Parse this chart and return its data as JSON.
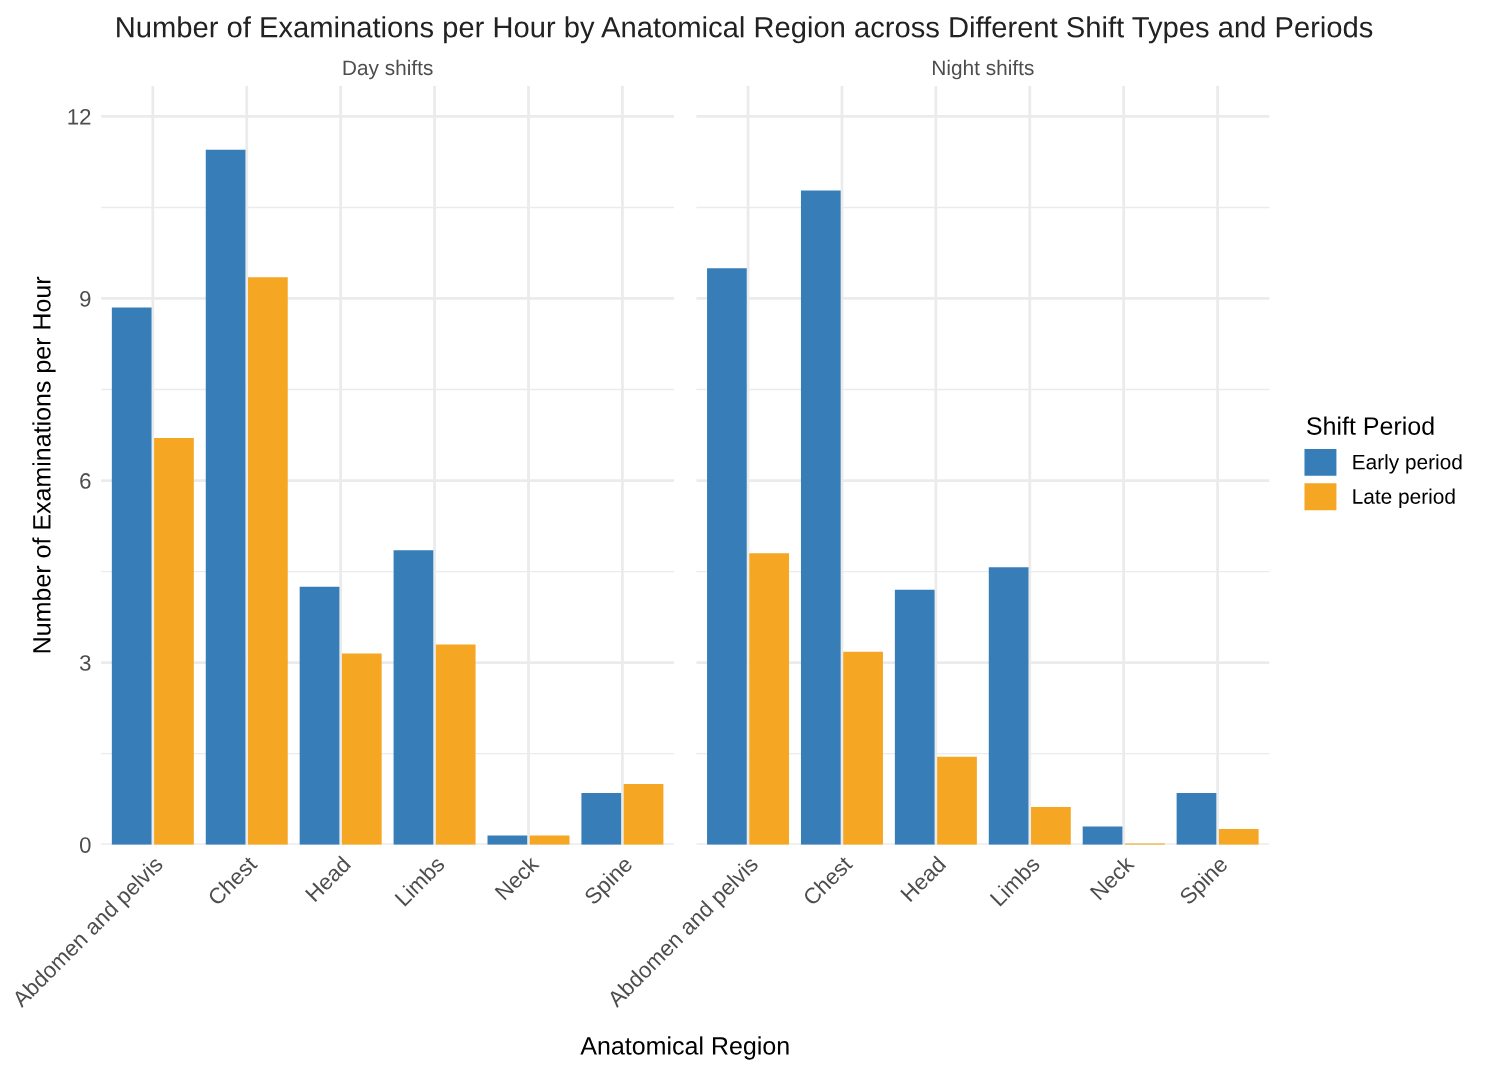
{
  "chart_data": [
    {
      "type": "bar",
      "title": "Number of Examinations per Hour by Anatomical Region across Different Shift Types and Periods",
      "subtitle": "Day shifts",
      "xlabel": "Anatomical Region",
      "ylabel": "Number of Examinations per Hour",
      "categories": [
        "Abdomen and pelvis",
        "Chest",
        "Head",
        "Limbs",
        "Neck",
        "Spine"
      ],
      "series": [
        {
          "color": "#377eb8",
          "values": [
            8.85,
            11.45,
            4.25,
            4.85,
            0.15,
            0.85
          ]
        },
        {
          "color": "#f5a623",
          "values": [
            6.7,
            9.35,
            3.15,
            3.3,
            0.15,
            1.0
          ]
        }
      ],
      "ylim": [
        0,
        12.5
      ],
      "yticks": [
        0,
        3,
        6,
        9,
        12
      ],
      "grid": true
    },
    {
      "type": "bar",
      "subtitle": "Night shifts",
      "legend_title": "Shift Period",
      "categories": [
        "Abdomen and pelvis",
        "Chest",
        "Head",
        "Limbs",
        "Neck",
        "Spine"
      ],
      "series": [
        {
          "name": "Early period",
          "color": "#377eb8",
          "values": [
            9.5,
            10.78,
            4.2,
            4.57,
            0.3,
            0.85
          ]
        },
        {
          "name": "Late period",
          "color": "#f5a623",
          "values": [
            4.8,
            3.18,
            1.45,
            0.62,
            0.02,
            0.26
          ]
        }
      ],
      "ylim": [
        0,
        12.5
      ],
      "yticks": [
        0,
        3,
        6,
        9,
        12
      ],
      "grid": true,
      "tick_labels": "x",
      "legend": "right"
    }
  ]
}
